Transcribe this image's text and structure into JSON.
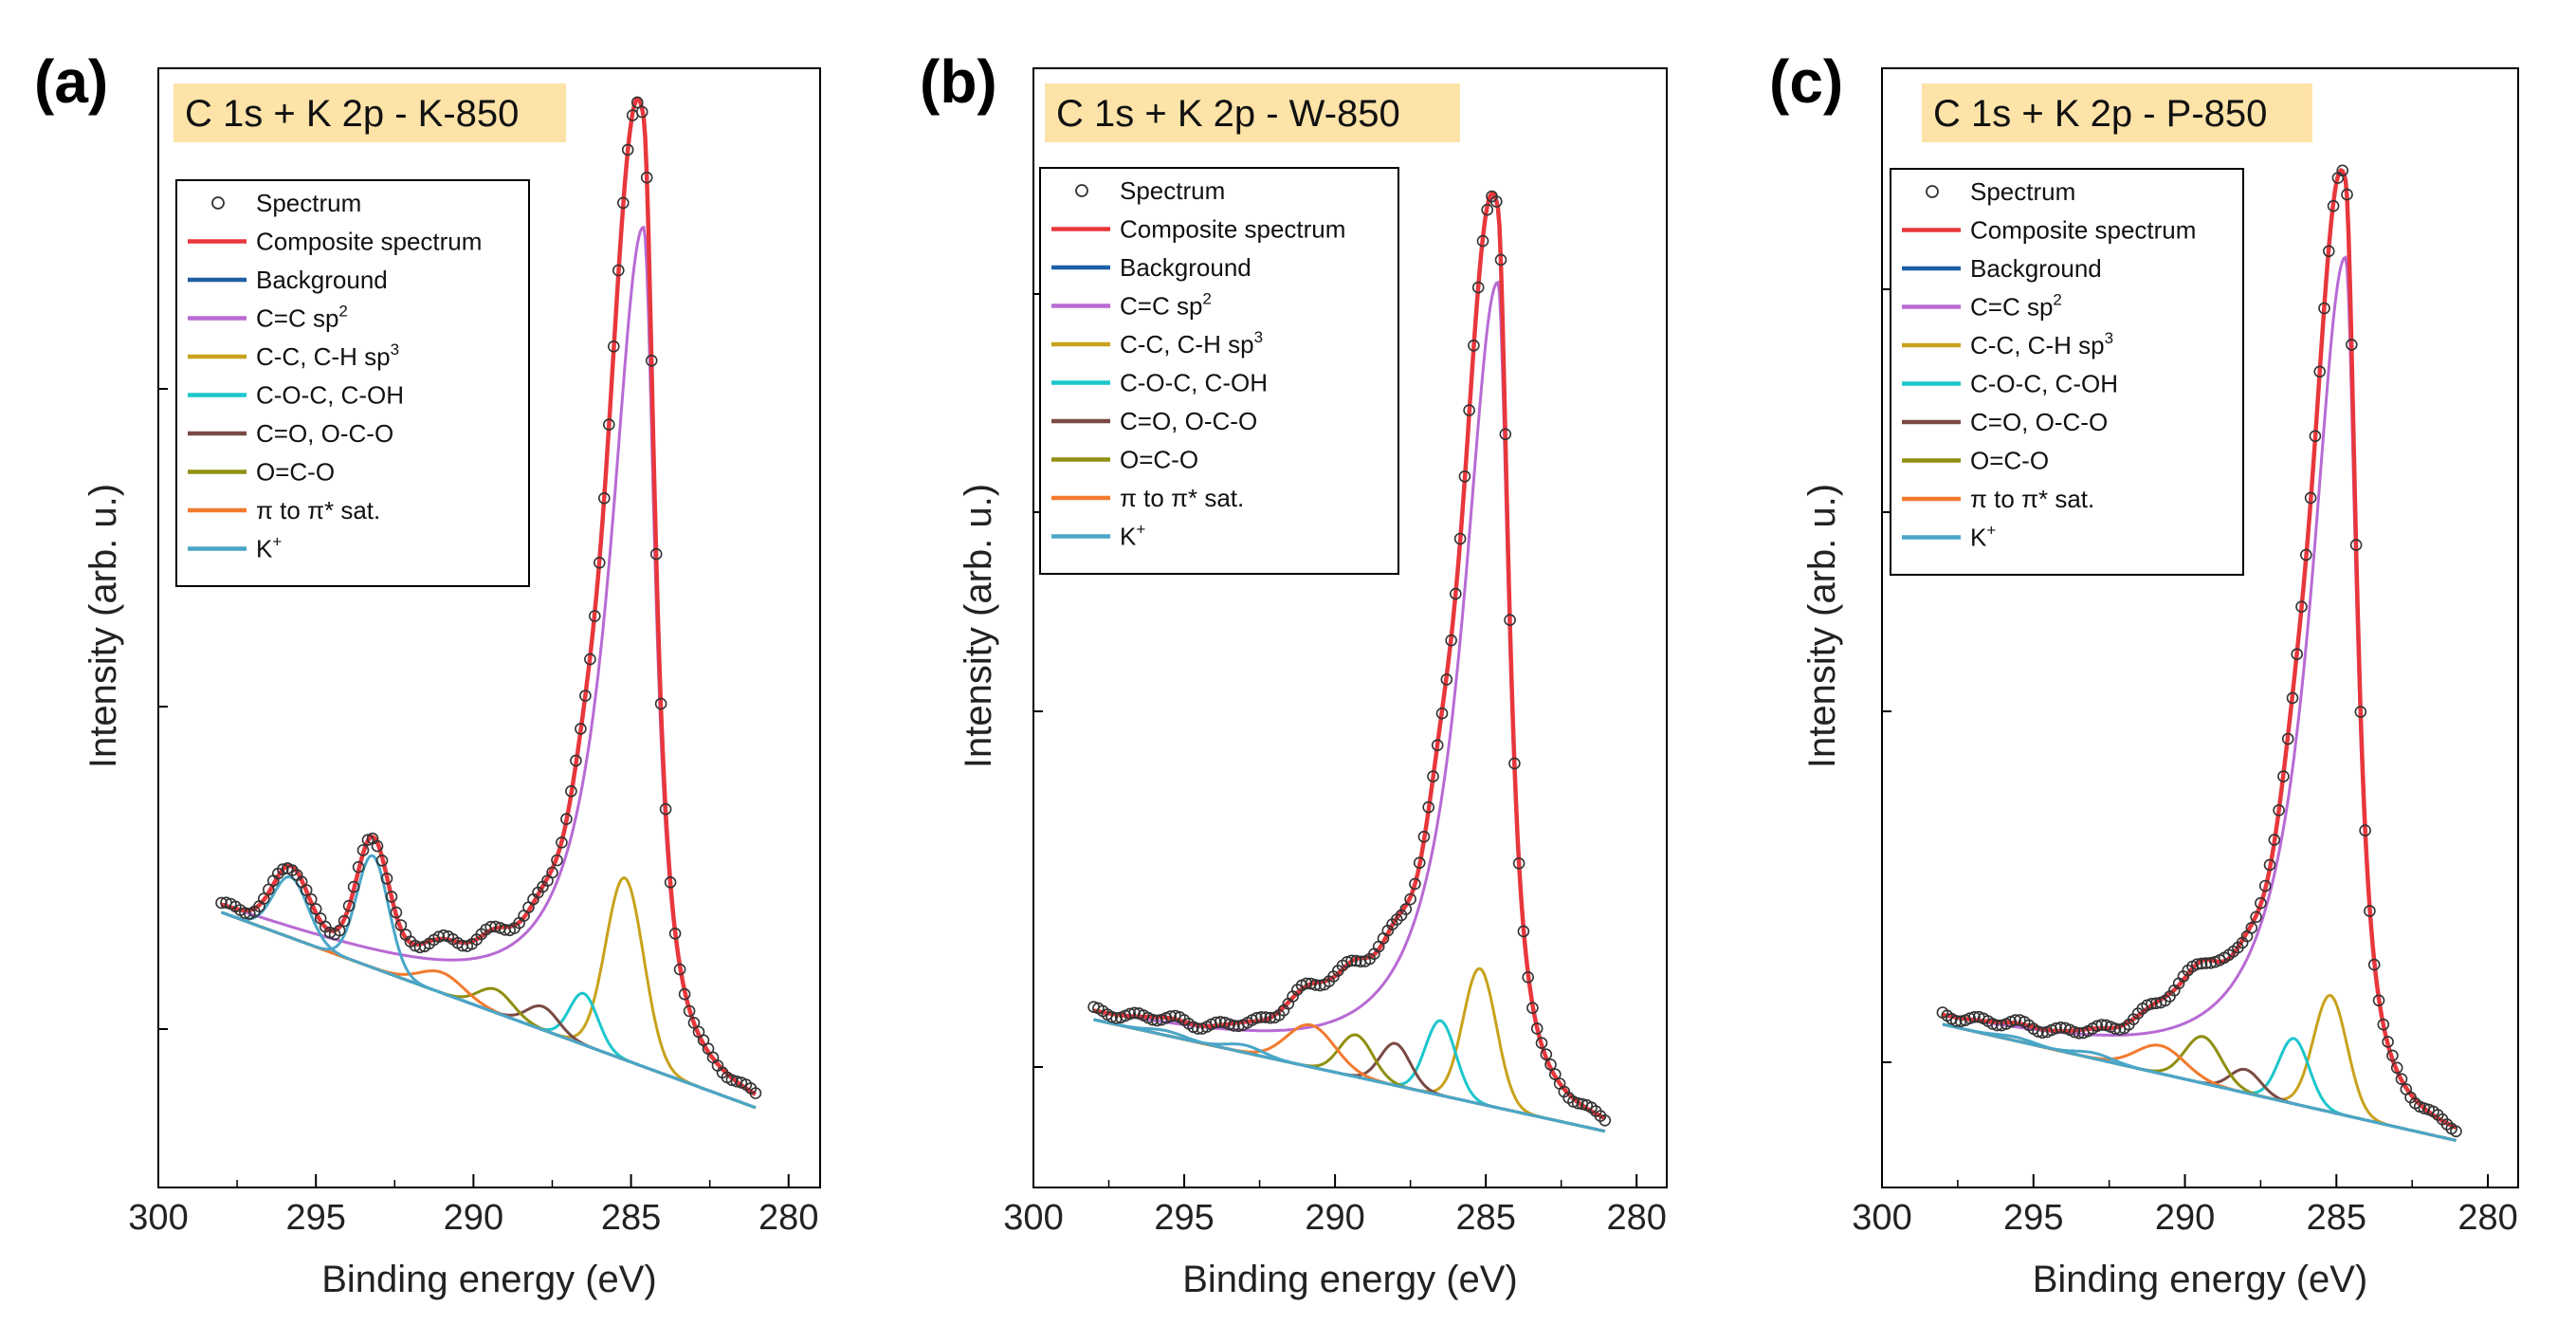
{
  "colors": {
    "Spectrum": "#333333",
    "Composite spectrum": "#e8373c",
    "Background": "#1d5fa6",
    "C=C sp2": "#b86ad4",
    "C-C, C-H sp3": "#c8a21c",
    "C-O-C, C-OH": "#1cc6cc",
    "C=O, O-C-O": "#7a4a44",
    "O=C-O": "#8f8f12",
    "pi to pi* sat.": "#f27a2e",
    "K+": "#4aa6c8",
    "title_bg": "#fde3a8"
  },
  "chart_data": [
    {
      "type": "line",
      "panel_label": "(a)",
      "title": "C 1s + K 2p - K-850",
      "xlabel": "Binding energy (eV)",
      "ylabel": "Intensity (arb. u.)",
      "xlim": [
        300,
        279
      ],
      "ylim": [
        -0.05,
        1.15
      ],
      "xticks": [
        300,
        295,
        290,
        285,
        280
      ],
      "legend_position": "top-left",
      "legend": [
        "Spectrum",
        "Composite spectrum",
        "Background",
        "C=C sp2",
        "C-C, C-H sp3",
        "C-O-C, C-OH",
        "C=O, O-C-O",
        "O=C-O",
        "pi to pi* sat.",
        "K+"
      ],
      "legend_labels": [
        "Spectrum",
        "Composite spectrum",
        "Background",
        "C=C sp",
        "C-C, C-H sp",
        "C-O-C, C-OH",
        "C=O, O-C-O",
        "O=C-O",
        "π to π* sat.",
        "K"
      ],
      "legend_sups": [
        "",
        "",
        "",
        "2",
        "3",
        "",
        "",
        "",
        "",
        "+"
      ],
      "background": [
        0.245,
        0.035
      ],
      "peaks": [
        {
          "name": "C=C sp2",
          "type": "asym",
          "center": 284.6,
          "height": 0.9,
          "w_low": 0.45,
          "w_high": 1.3
        },
        {
          "name": "C-C, C-H sp3",
          "type": "gauss",
          "center": 285.2,
          "height": 0.195,
          "sigma": 0.6
        },
        {
          "name": "C-O-C, C-OH",
          "type": "gauss",
          "center": 286.5,
          "height": 0.055,
          "sigma": 0.45
        },
        {
          "name": "C=O, O-C-O",
          "type": "gauss",
          "center": 287.8,
          "height": 0.025,
          "sigma": 0.5
        },
        {
          "name": "O=C-O",
          "type": "gauss",
          "center": 289.3,
          "height": 0.025,
          "sigma": 0.55
        },
        {
          "name": "pi to pi* sat.",
          "type": "gauss",
          "center": 291.0,
          "height": 0.022,
          "sigma": 0.7
        },
        {
          "name": "K+",
          "type": "gauss",
          "center": 293.2,
          "height": 0.12,
          "sigma": 0.5
        },
        {
          "name": "K+",
          "type": "gauss",
          "center": 295.8,
          "height": 0.065,
          "sigma": 0.55
        }
      ]
    },
    {
      "type": "line",
      "panel_label": "(b)",
      "title": "C 1s + K 2p - W-850",
      "xlabel": "Binding energy (eV)",
      "ylabel": "Intensity (arb. u.)",
      "xlim": [
        300,
        279
      ],
      "ylim": [
        -0.05,
        1.15
      ],
      "xticks": [
        300,
        295,
        290,
        285,
        280
      ],
      "legend_position": "top-left",
      "legend": [
        "Spectrum",
        "Composite spectrum",
        "Background",
        "C=C sp2",
        "C-C, C-H sp3",
        "C-O-C, C-OH",
        "C=O, O-C-O",
        "O=C-O",
        "pi to pi* sat.",
        "K+"
      ],
      "legend_labels": [
        "Spectrum",
        "Composite spectrum",
        "Background",
        "C=C sp",
        "C-C, C-H sp",
        "C-O-C, C-OH",
        "C=O, O-C-O",
        "O=C-O",
        "π to π* sat.",
        "K"
      ],
      "legend_sups": [
        "",
        "",
        "",
        "2",
        "3",
        "",
        "",
        "",
        "",
        "+"
      ],
      "background": [
        0.13,
        0.01
      ],
      "peaks": [
        {
          "name": "C=C sp2",
          "type": "asym",
          "center": 284.6,
          "height": 0.885,
          "w_low": 0.45,
          "w_high": 1.4
        },
        {
          "name": "C-C, C-H sp3",
          "type": "gauss",
          "center": 285.2,
          "height": 0.145,
          "sigma": 0.55
        },
        {
          "name": "C-O-C, C-OH",
          "type": "gauss",
          "center": 286.5,
          "height": 0.08,
          "sigma": 0.5
        },
        {
          "name": "C=O, O-C-O",
          "type": "gauss",
          "center": 288.0,
          "height": 0.045,
          "sigma": 0.5
        },
        {
          "name": "O=C-O",
          "type": "gauss",
          "center": 289.3,
          "height": 0.045,
          "sigma": 0.55
        },
        {
          "name": "pi to pi* sat.",
          "type": "gauss",
          "center": 290.8,
          "height": 0.045,
          "sigma": 0.8
        },
        {
          "name": "K+",
          "type": "gauss",
          "center": 293.0,
          "height": 0.008,
          "sigma": 0.6
        },
        {
          "name": "K+",
          "type": "gauss",
          "center": 295.6,
          "height": 0.005,
          "sigma": 0.6
        }
      ]
    },
    {
      "type": "line",
      "panel_label": "(c)",
      "title": "C 1s + K 2p - P-850",
      "xlabel": "Binding energy (eV)",
      "ylabel": "Intensity (arb. u.)",
      "xlim": [
        300,
        279
      ],
      "ylim": [
        -0.05,
        1.15
      ],
      "xticks": [
        300,
        295,
        290,
        285,
        280
      ],
      "legend_position": "top-left",
      "legend": [
        "Spectrum",
        "Composite spectrum",
        "Background",
        "C=C sp2",
        "C-C, C-H sp3",
        "C-O-C, C-OH",
        "C=O, O-C-O",
        "O=C-O",
        "pi to pi* sat.",
        "K+"
      ],
      "legend_labels": [
        "Spectrum",
        "Composite spectrum",
        "Background",
        "C=C sp",
        "C-C, C-H sp",
        "C-O-C, C-OH",
        "C=O, O-C-O",
        "O=C-O",
        "π to π* sat.",
        "K"
      ],
      "legend_sups": [
        "",
        "",
        "",
        "2",
        "3",
        "",
        "",
        "",
        "",
        "+"
      ],
      "background": [
        0.125,
        0.0
      ],
      "peaks": [
        {
          "name": "C=C sp2",
          "type": "asym",
          "center": 284.7,
          "height": 0.92,
          "w_low": 0.45,
          "w_high": 1.4
        },
        {
          "name": "C-C, C-H sp3",
          "type": "gauss",
          "center": 285.2,
          "height": 0.125,
          "sigma": 0.55
        },
        {
          "name": "C-O-C, C-OH",
          "type": "gauss",
          "center": 286.4,
          "height": 0.07,
          "sigma": 0.5
        },
        {
          "name": "C=O, O-C-O",
          "type": "gauss",
          "center": 288.0,
          "height": 0.025,
          "sigma": 0.5
        },
        {
          "name": "O=C-O",
          "type": "gauss",
          "center": 289.4,
          "height": 0.05,
          "sigma": 0.6
        },
        {
          "name": "pi to pi* sat.",
          "type": "gauss",
          "center": 290.8,
          "height": 0.03,
          "sigma": 0.8
        },
        {
          "name": "K+",
          "type": "gauss",
          "center": 293.0,
          "height": 0.006,
          "sigma": 0.6
        },
        {
          "name": "K+",
          "type": "gauss",
          "center": 295.6,
          "height": 0.004,
          "sigma": 0.6
        }
      ]
    }
  ]
}
